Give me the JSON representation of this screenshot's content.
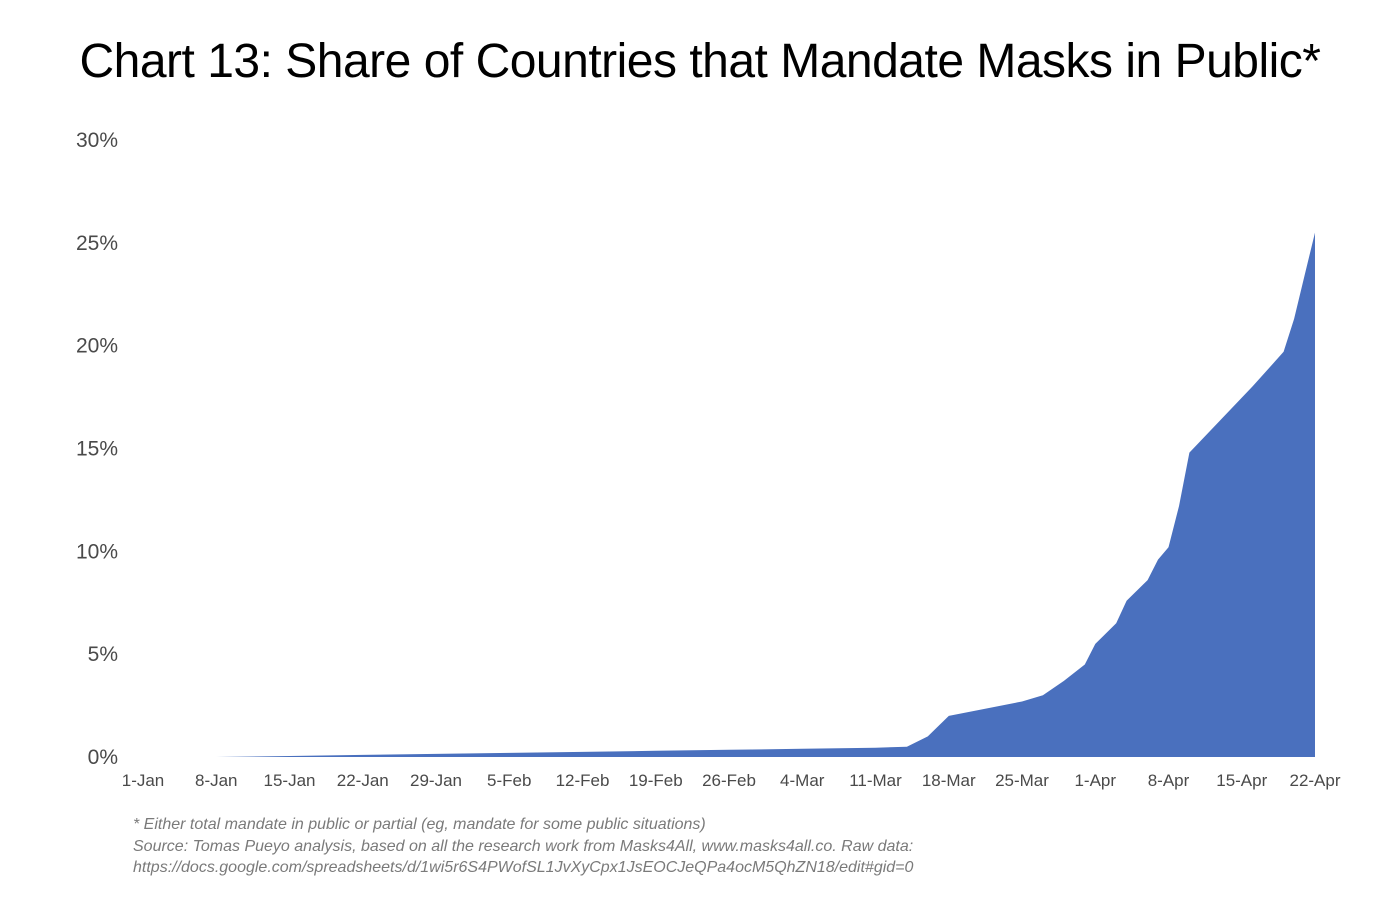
{
  "chart_data": {
    "type": "area",
    "title": "Chart 13: Share of Countries that Mandate Masks in Public*",
    "xlabel": "",
    "ylabel": "",
    "ylim": [
      0,
      30
    ],
    "y_ticks": [
      "0%",
      "5%",
      "10%",
      "15%",
      "20%",
      "25%",
      "30%"
    ],
    "y_tick_values": [
      0,
      5,
      10,
      15,
      20,
      25,
      30
    ],
    "x_range": [
      0,
      112
    ],
    "x_ticks": [
      "1-Jan",
      "8-Jan",
      "15-Jan",
      "22-Jan",
      "29-Jan",
      "5-Feb",
      "12-Feb",
      "19-Feb",
      "26-Feb",
      "4-Mar",
      "11-Mar",
      "18-Mar",
      "25-Mar",
      "1-Apr",
      "8-Apr",
      "15-Apr",
      "22-Apr"
    ],
    "x_tick_days": [
      0,
      7,
      14,
      21,
      28,
      35,
      42,
      49,
      56,
      63,
      70,
      77,
      84,
      91,
      98,
      105,
      112
    ],
    "grid": false,
    "color": "#4a70be",
    "series": [
      {
        "name": "Share of countries mandating masks in public (%)",
        "points": [
          {
            "day": 0,
            "value": 0.0
          },
          {
            "day": 7,
            "value": 0.0
          },
          {
            "day": 14,
            "value": 0.05
          },
          {
            "day": 21,
            "value": 0.1
          },
          {
            "day": 28,
            "value": 0.15
          },
          {
            "day": 35,
            "value": 0.2
          },
          {
            "day": 42,
            "value": 0.25
          },
          {
            "day": 49,
            "value": 0.3
          },
          {
            "day": 56,
            "value": 0.35
          },
          {
            "day": 63,
            "value": 0.4
          },
          {
            "day": 70,
            "value": 0.45
          },
          {
            "day": 73,
            "value": 0.5
          },
          {
            "day": 75,
            "value": 1.0
          },
          {
            "day": 77,
            "value": 2.0
          },
          {
            "day": 80,
            "value": 2.3
          },
          {
            "day": 84,
            "value": 2.7
          },
          {
            "day": 86,
            "value": 3.0
          },
          {
            "day": 88,
            "value": 3.7
          },
          {
            "day": 90,
            "value": 4.5
          },
          {
            "day": 91,
            "value": 5.5
          },
          {
            "day": 93,
            "value": 6.5
          },
          {
            "day": 94,
            "value": 7.6
          },
          {
            "day": 96,
            "value": 8.6
          },
          {
            "day": 97,
            "value": 9.6
          },
          {
            "day": 98,
            "value": 10.2
          },
          {
            "day": 99,
            "value": 12.2
          },
          {
            "day": 100,
            "value": 14.8
          },
          {
            "day": 106,
            "value": 18.0
          },
          {
            "day": 109,
            "value": 19.7
          },
          {
            "day": 110,
            "value": 21.3
          },
          {
            "day": 111,
            "value": 23.4
          },
          {
            "day": 113,
            "value": 25.5
          }
        ]
      }
    ],
    "footnotes": [
      "* Either total mandate in public or partial (eg, mandate for some public situations)",
      "Source: Tomas Pueyo analysis, based on all the research work from Masks4All, www.masks4all.co. Raw data:",
      "https://docs.google.com/spreadsheets/d/1wi5r6S4PWofSL1JvXyCpx1JsEOCJeQPa4ocM5QhZN18/edit#gid=0"
    ]
  }
}
